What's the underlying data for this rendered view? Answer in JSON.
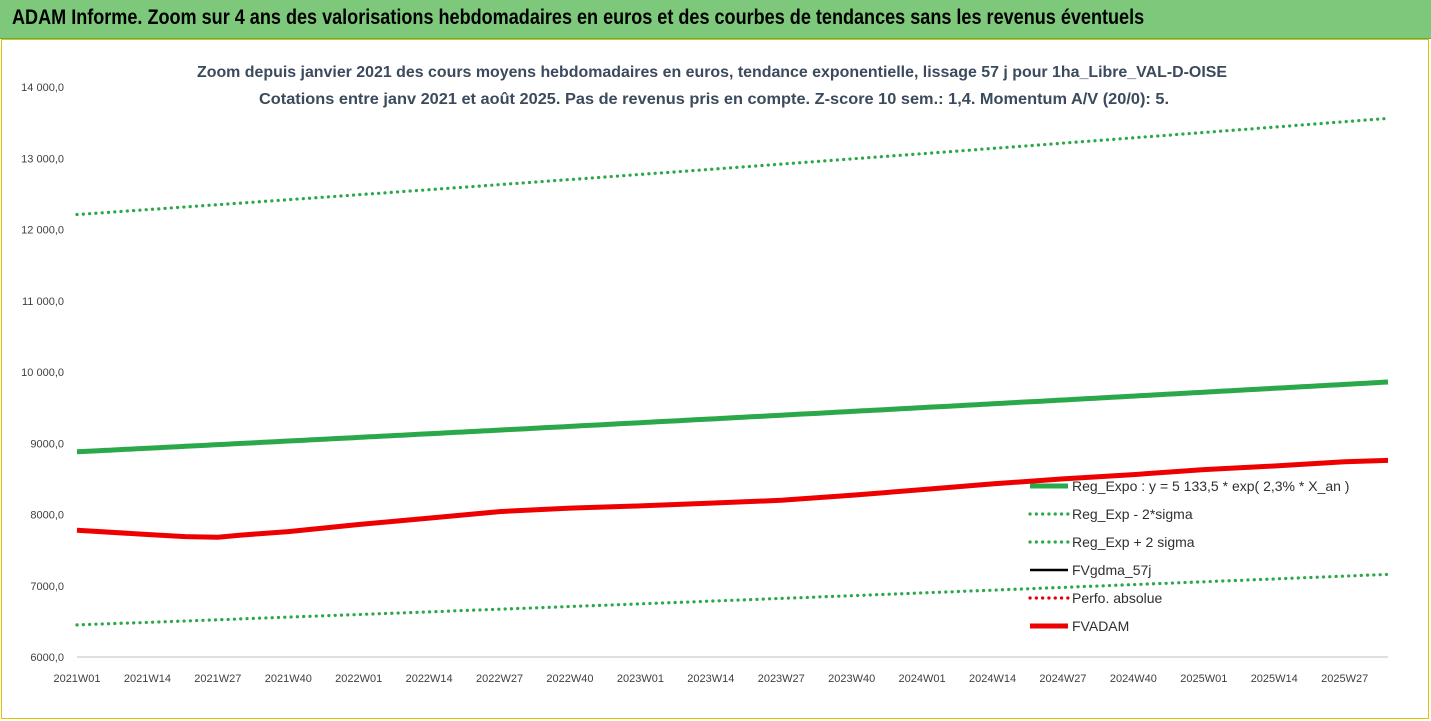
{
  "banner": {
    "title": "ADAM Informe. Zoom sur 4 ans des valorisations hebdomadaires en euros et des courbes de tendances sans les revenus éventuels"
  },
  "colors": {
    "banner_bg": "#7dc87a",
    "reg_expo": "#2aa84a",
    "fvgdma": "#000000",
    "perfo": "#e00000",
    "fvadam": "#ee0000"
  },
  "chart_data": {
    "type": "line",
    "title": "Zoom depuis janvier 2021 des cours moyens hebdomadaires en euros, tendance exponentielle, lissage 57 j pour 1ha_Libre_VAL-D-OISE",
    "subtitle": "Cotations entre janv 2021 et août 2025.  Pas de revenus pris en compte. Z-score 10 sem.: 1,4. Momentum A/V (20/0): 5.",
    "ylim": [
      6000,
      14000
    ],
    "yticks": [
      "6000,0",
      "7000,0",
      "8000,0",
      "9000,0",
      "10 000,0",
      "11 000,0",
      "12 000,0",
      "13 000,0",
      "14 000,0"
    ],
    "ytick_values": [
      6000,
      7000,
      8000,
      9000,
      10000,
      11000,
      12000,
      13000,
      14000
    ],
    "xticks": [
      "2021W01",
      "2021W14",
      "2021W27",
      "2021W40",
      "2022W01",
      "2022W14",
      "2022W27",
      "2022W40",
      "2023W01",
      "2023W14",
      "2023W27",
      "2023W40",
      "2024W01",
      "2024W14",
      "2024W27",
      "2024W40",
      "2025W01",
      "2025W14",
      "2025W27"
    ],
    "xtick_weeks": [
      0,
      13,
      26,
      39,
      52,
      65,
      78,
      91,
      104,
      117,
      130,
      143,
      156,
      169,
      182,
      195,
      208,
      221,
      234
    ],
    "x_last_week": 242,
    "grid": false,
    "legend": "bottom-right",
    "series": [
      {
        "name": "Reg_Expo : y = 5 133,5 * exp( 2,3% *  X_an )",
        "style": "solid-thick",
        "color": "#2aa84a",
        "x": [
          0,
          242
        ],
        "y": [
          8880,
          9860
        ],
        "curve": "exp"
      },
      {
        "name": "Reg_Exp - 2*sigma",
        "style": "dotted",
        "color": "#2aa84a",
        "x": [
          0,
          242
        ],
        "y": [
          6450,
          7160
        ],
        "curve": "exp"
      },
      {
        "name": "Reg_Exp + 2 sigma",
        "style": "dotted",
        "color": "#2aa84a",
        "x": [
          0,
          242
        ],
        "y": [
          12210,
          13560
        ],
        "curve": "exp"
      },
      {
        "name": "FVgdma_57j",
        "style": "solid",
        "color": "#000000",
        "x": [
          0,
          13,
          20,
          26,
          30,
          39,
          52,
          65,
          78,
          91,
          104,
          117,
          130,
          143,
          156,
          169,
          182,
          195,
          208,
          221,
          234,
          242
        ],
        "y": [
          7780,
          7720,
          7700,
          7690,
          7720,
          7760,
          7860,
          7950,
          8040,
          8090,
          8120,
          8160,
          8200,
          8270,
          8350,
          8430,
          8500,
          8560,
          8630,
          8680,
          8740,
          8760
        ]
      },
      {
        "name": "Perfo. absolue",
        "style": "dotted",
        "color": "#e00000",
        "x": [],
        "y": []
      },
      {
        "name": "FVADAM",
        "style": "solid-thick",
        "color": "#ee0000",
        "x": [
          0,
          13,
          20,
          26,
          30,
          39,
          52,
          65,
          78,
          91,
          104,
          117,
          130,
          143,
          156,
          169,
          182,
          195,
          208,
          221,
          234,
          242
        ],
        "y": [
          7780,
          7720,
          7690,
          7680,
          7710,
          7760,
          7860,
          7950,
          8040,
          8090,
          8120,
          8160,
          8200,
          8270,
          8350,
          8430,
          8500,
          8560,
          8630,
          8680,
          8740,
          8760
        ]
      }
    ]
  }
}
